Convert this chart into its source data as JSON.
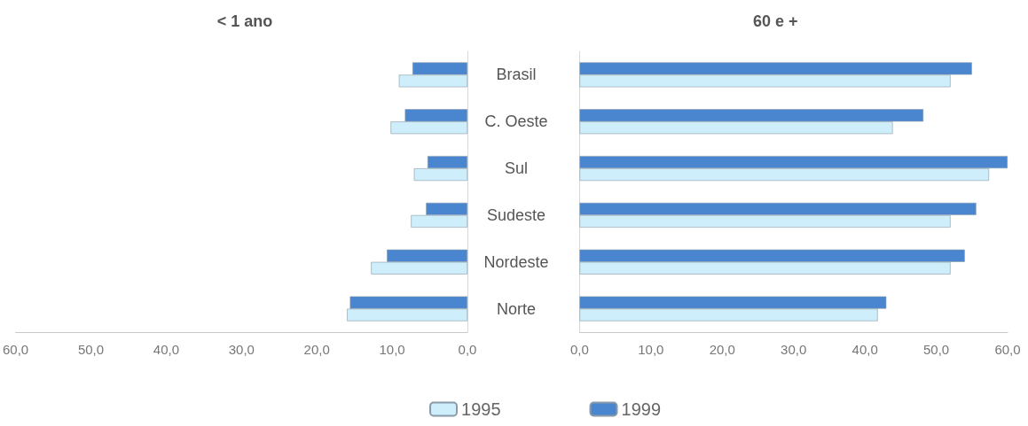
{
  "chart_data": [
    {
      "type": "bar",
      "title": "< 1 ano",
      "orientation": "horizontal",
      "categories": [
        "Brasil",
        "C. Oeste",
        "Sul",
        "Sudeste",
        "Nordeste",
        "Norte"
      ],
      "series": [
        {
          "name": "1995",
          "color": "#cdeefa",
          "values": [
            9.1,
            10.2,
            7.1,
            7.5,
            12.8,
            16.0
          ]
        },
        {
          "name": "1999",
          "color": "#4a86d0",
          "values": [
            7.3,
            8.3,
            5.3,
            5.5,
            10.7,
            15.6
          ]
        }
      ],
      "xlim": [
        60,
        0
      ],
      "xticks": [
        {
          "value": 60,
          "label": "60,0"
        },
        {
          "value": 50,
          "label": "50,0"
        },
        {
          "value": 40,
          "label": "40,0"
        },
        {
          "value": 30,
          "label": "30,0"
        },
        {
          "value": 20,
          "label": "20,0"
        },
        {
          "value": 10,
          "label": "10,0"
        },
        {
          "value": 0,
          "label": "0,0"
        }
      ],
      "legend": "bottom",
      "grid": false
    },
    {
      "type": "bar",
      "title": "60 e +",
      "orientation": "horizontal",
      "categories": [
        null,
        null,
        null,
        null,
        null,
        null
      ],
      "series": [
        {
          "name": "1995",
          "color": "#cdeefa",
          "values": [
            52.0,
            43.9,
            57.4,
            52.0,
            52.0,
            41.8
          ]
        },
        {
          "name": "1999",
          "color": "#4a86d0",
          "values": [
            55.0,
            48.2,
            60.0,
            55.6,
            54.0,
            43.0
          ]
        }
      ],
      "xlim": [
        0,
        60
      ],
      "xticks": [
        {
          "value": 0,
          "label": "0,0"
        },
        {
          "value": 10,
          "label": "10,0"
        },
        {
          "value": 20,
          "label": "20,0"
        },
        {
          "value": 30,
          "label": "30,0"
        },
        {
          "value": 40,
          "label": "40,0"
        },
        {
          "value": 50,
          "label": "50,0"
        },
        {
          "value": 60,
          "label": "60,0"
        }
      ],
      "tick_labels": "x",
      "legend": false,
      "grid": false
    }
  ]
}
